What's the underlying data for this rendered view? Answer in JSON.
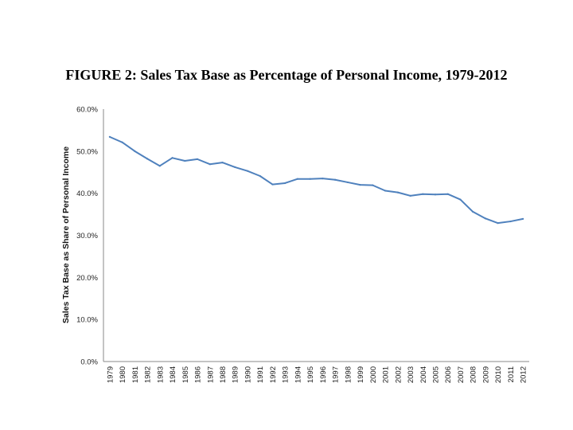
{
  "chart_data": {
    "type": "line",
    "title": "FIGURE 2:  Sales Tax Base as Percentage of Personal Income, 1979-2012",
    "xlabel": "",
    "ylabel": "Sales Tax Base as Share of Personal Income",
    "ylim": [
      0,
      60
    ],
    "yticks": [
      "0.0%",
      "10.0%",
      "20.0%",
      "30.0%",
      "40.0%",
      "50.0%",
      "60.0%"
    ],
    "ytick_values": [
      0,
      10,
      20,
      30,
      40,
      50,
      60
    ],
    "grid": false,
    "legend": "none",
    "categories": [
      "1979",
      "1980",
      "1981",
      "1982",
      "1983",
      "1984",
      "1985",
      "1986",
      "1987",
      "1988",
      "1989",
      "1990",
      "1991",
      "1992",
      "1993",
      "1994",
      "1995",
      "1996",
      "1997",
      "1998",
      "1999",
      "2000",
      "2001",
      "2002",
      "2003",
      "2004",
      "2005",
      "2006",
      "2007",
      "2008",
      "2009",
      "2010",
      "2011",
      "2012"
    ],
    "series": [
      {
        "name": "Sales Tax Base as Share of Personal Income",
        "color": "#4f81bd",
        "values": [
          53.4,
          52.1,
          50.0,
          48.2,
          46.5,
          48.4,
          47.7,
          48.1,
          46.9,
          47.3,
          46.2,
          45.3,
          44.1,
          42.1,
          42.4,
          43.4,
          43.4,
          43.5,
          43.2,
          42.6,
          42.0,
          41.9,
          40.6,
          40.2,
          39.4,
          39.8,
          39.7,
          39.8,
          38.5,
          35.6,
          34.0,
          32.9,
          33.3,
          33.9
        ]
      }
    ]
  }
}
